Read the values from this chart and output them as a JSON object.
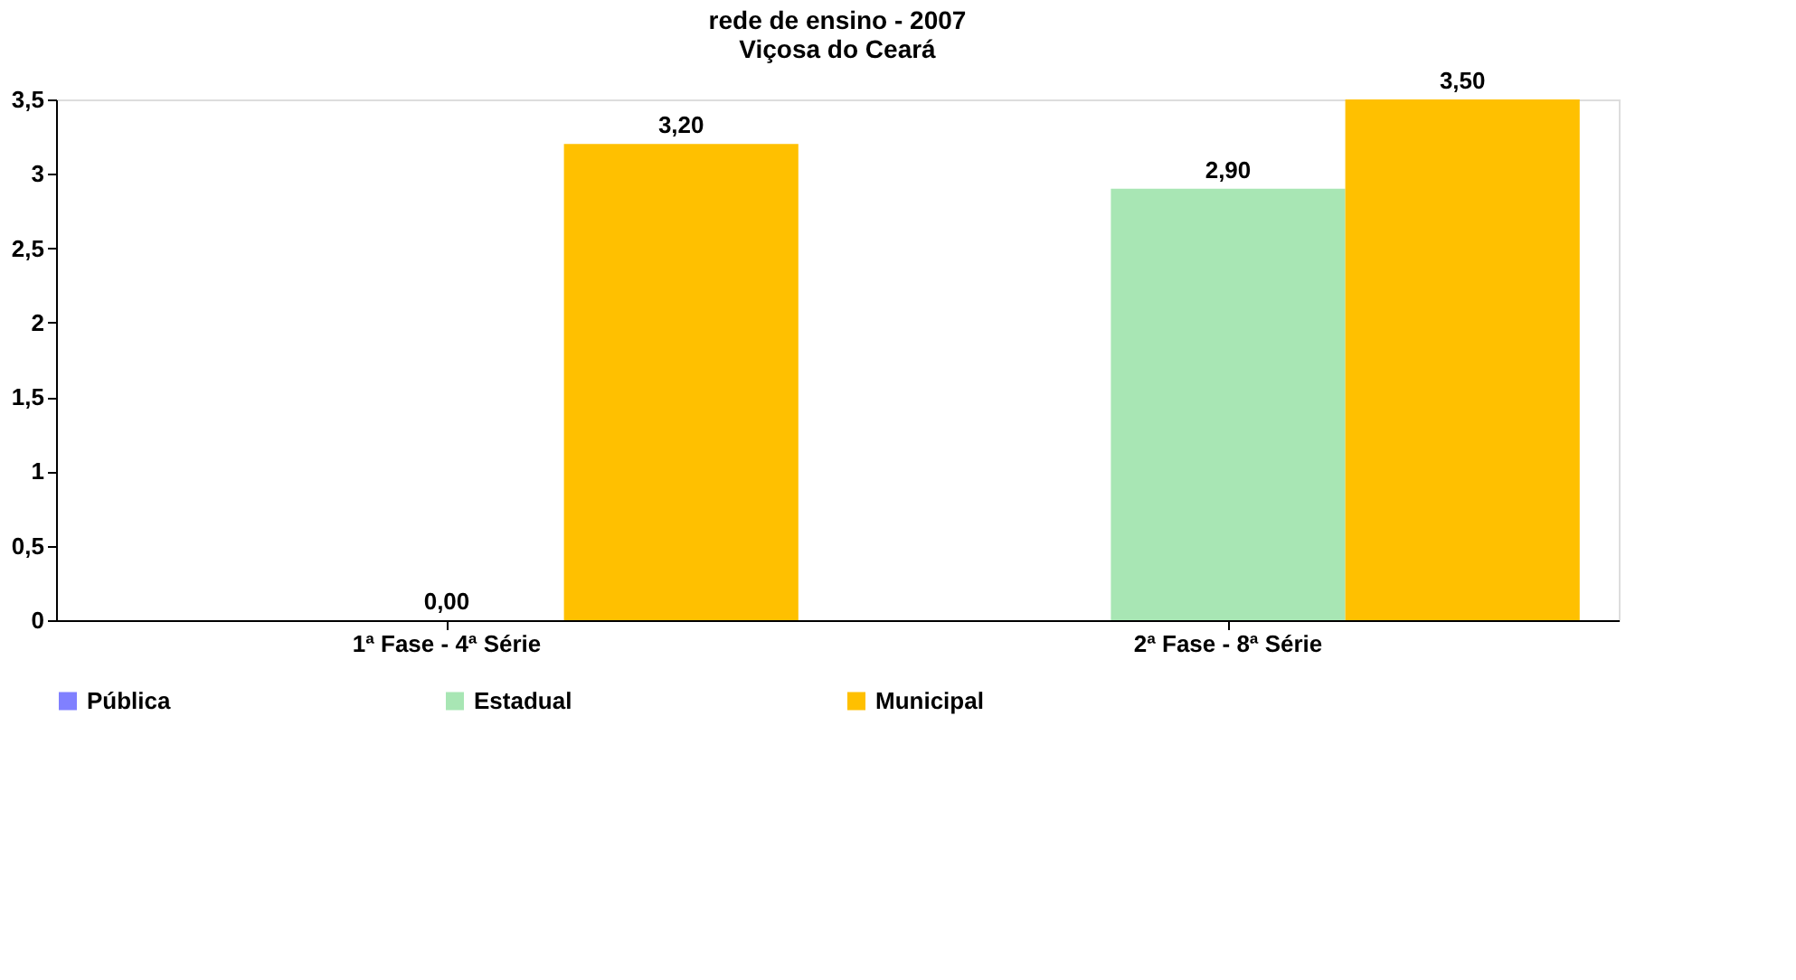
{
  "chart_data": {
    "type": "bar",
    "title": [
      "rede de ensino - 2007",
      "Viçosa do Ceará"
    ],
    "categories": [
      "1ª Fase - 4ª Série",
      "2ª Fase - 8ª Série"
    ],
    "series": [
      {
        "name": "Pública",
        "color": "#8080ff",
        "values": [
          null,
          null
        ]
      },
      {
        "name": "Estadual",
        "color": "#a8e6b4",
        "values": [
          0.0,
          2.9
        ],
        "value_labels": [
          "0,00",
          "2,90"
        ]
      },
      {
        "name": "Municipal",
        "color": "#ffc000",
        "values": [
          3.2,
          3.5
        ],
        "value_labels": [
          "3,20",
          "3,50"
        ]
      }
    ],
    "ylim": [
      0,
      3.5
    ],
    "yticks": [
      0,
      {
        "value": 0.5,
        "label": "0,5"
      },
      1,
      {
        "value": 1.5,
        "label": "1,5"
      },
      2,
      {
        "value": 2.5,
        "label": "2,5"
      },
      3,
      {
        "value": 3.5,
        "label": "3,5"
      }
    ],
    "grid": false,
    "legend": "bottom"
  }
}
